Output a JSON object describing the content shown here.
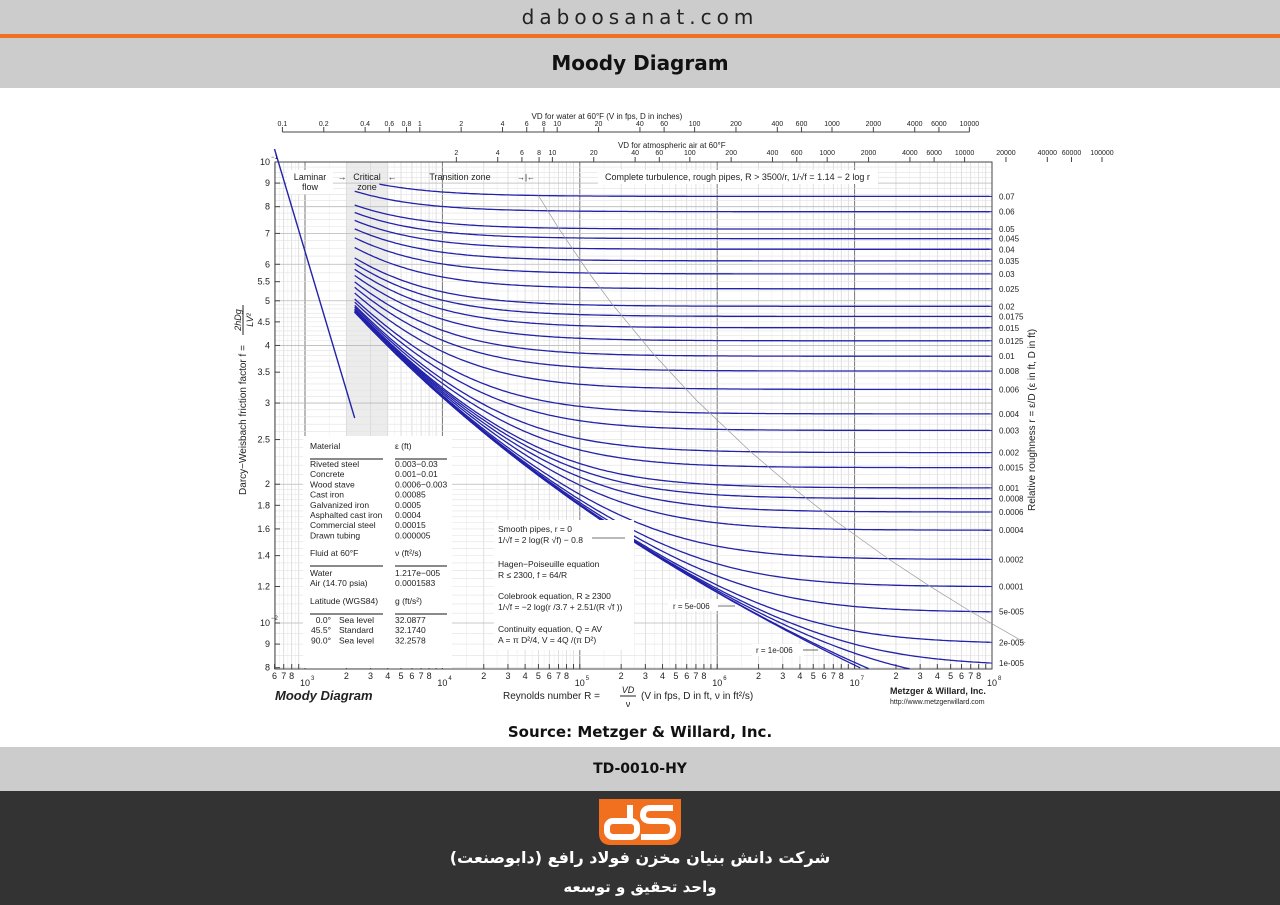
{
  "header": {
    "site": "daboosanat.com",
    "title": "Moody Diagram"
  },
  "source": "Source: Metzger & Willard, Inc.",
  "doc_code": "TD-0010-HY",
  "footer": {
    "company": "شرکت دانش بنیان مخزن فولاد رافع (دابوصنعت)",
    "unit": "واحد تحقیق و توسعه"
  },
  "colors": {
    "accent": "#f07020",
    "curve": "#2222aa",
    "bar_gray": "#cccccc",
    "footer_bg": "#333333"
  },
  "chart_data": {
    "type": "line",
    "title": "Moody Diagram",
    "xlabel": "Reynolds number R = VD/ν (V in fps, D in ft, ν in ft²/s)",
    "ylabel": "Darcy–Weisbach friction factor f = 2hDg/LV²",
    "y2label": "Relative roughness r = ε/D (ε in ft, D in ft)",
    "xscale": "log",
    "yscale": "log",
    "xlim": [
      600,
      100000000
    ],
    "ylim": [
      0.008,
      0.1
    ],
    "x_major_ticks": [
      "10^3",
      "10^4",
      "10^5",
      "10^6",
      "10^7",
      "10^8"
    ],
    "x_minor_labels": [
      "2",
      "3",
      "4",
      "5",
      "6",
      "7",
      "8"
    ],
    "y_tick_labels": [
      "10^-1",
      "9",
      "8",
      "7",
      "6",
      "5.5",
      "5",
      "4.5",
      "4",
      "3.5",
      "3",
      "2.5",
      "2",
      "1.8",
      "1.6",
      "1.4",
      "1.2",
      "10^-2",
      "9",
      "8"
    ],
    "top_axis_water": {
      "label": "VD for water at 60°F (V in fps, D in inches)",
      "ticks": [
        "0.1",
        "0.2",
        "0.4",
        "0.6",
        "0.8",
        "1",
        "2",
        "4",
        "6",
        "8",
        "10",
        "20",
        "40",
        "60",
        "100",
        "200",
        "400",
        "600",
        "1000",
        "2000",
        "4000",
        "6000",
        "10000"
      ]
    },
    "top_axis_air": {
      "label": "VD for atmospheric air at 60°F",
      "ticks": [
        "2",
        "4",
        "6",
        "8",
        "10",
        "20",
        "40",
        "60",
        "100",
        "200",
        "400",
        "600",
        "1000",
        "2000",
        "4000",
        "6000",
        "10000",
        "20000",
        "40000",
        "60000",
        "100000"
      ]
    },
    "zones": [
      {
        "label": "Laminar flow"
      },
      {
        "label": "Critical zone"
      },
      {
        "label": "Transition zone"
      },
      {
        "label": "Complete turbulence, rough pipes, R > 3500/r,  1/√f = 1.14 − 2 log r"
      }
    ],
    "laminar": {
      "equation": "f = 64/R",
      "x": [
        600,
        2300
      ],
      "y": [
        0.1067,
        0.0278
      ]
    },
    "relative_roughness": [
      "0.07",
      "0.06",
      "0.05",
      "0.045",
      "0.04",
      "0.035",
      "0.03",
      "0.025",
      "0.02",
      "0.0175",
      "0.015",
      "0.0125",
      "0.01",
      "0.008",
      "0.006",
      "0.004",
      "0.003",
      "0.002",
      "0.0015",
      "0.001",
      "0.0008",
      "0.0006",
      "0.0004",
      "0.0002",
      "0.0001",
      "5e-005",
      "2e-005",
      "1e-005"
    ],
    "inline_curve_labels": [
      "r = 5e-006",
      "r = 1e-006"
    ],
    "annotations": {
      "smooth": [
        "Smooth pipes, r = 0",
        "1/√f = 2 log(R √f) − 0.8"
      ],
      "hagen": [
        "Hagen−Poiseuille equation",
        "R ≤ 2300,  f = 64/R"
      ],
      "colebrook": [
        "Colebrook equation, R ≥ 2300",
        "1/√f = −2 log(r /3.7 + 2.51/(R √f ))"
      ],
      "continuity": [
        "Continuity equation, Q = AV",
        "A = π D²/4,  V = 4Q /(π D²)"
      ]
    },
    "materials_table": {
      "headers": [
        "Material",
        "ε (ft)"
      ],
      "rows": [
        [
          "Riveted steel",
          "0.003−0.03"
        ],
        [
          "Concrete",
          "0.001−0.01"
        ],
        [
          "Wood stave",
          "0.0006−0.003"
        ],
        [
          "Cast iron",
          "0.00085"
        ],
        [
          "Galvanized iron",
          "0.0005"
        ],
        [
          "Asphalted cast iron",
          "0.0004"
        ],
        [
          "Commercial steel",
          "0.00015"
        ],
        [
          "Drawn tubing",
          "0.000005"
        ]
      ]
    },
    "fluid_table": {
      "headers": [
        "Fluid at 60°F",
        "ν (ft²/s)"
      ],
      "rows": [
        [
          "Water",
          "1.217e−005"
        ],
        [
          "Air (14.70 psia)",
          "0.0001583"
        ]
      ]
    },
    "gravity_table": {
      "headers": [
        "Latitude (WGS84)",
        "g (ft/s²)"
      ],
      "rows": [
        [
          "0.0°",
          "Sea level",
          "32.0877"
        ],
        [
          "45.5°",
          "Standard",
          "32.1740"
        ],
        [
          "90.0°",
          "Sea level",
          "32.2578"
        ]
      ]
    },
    "chart_caption": "Moody Diagram",
    "credit": "Metzger & Willard, Inc.",
    "credit_url": "http://www.metzgerwillard.com"
  }
}
